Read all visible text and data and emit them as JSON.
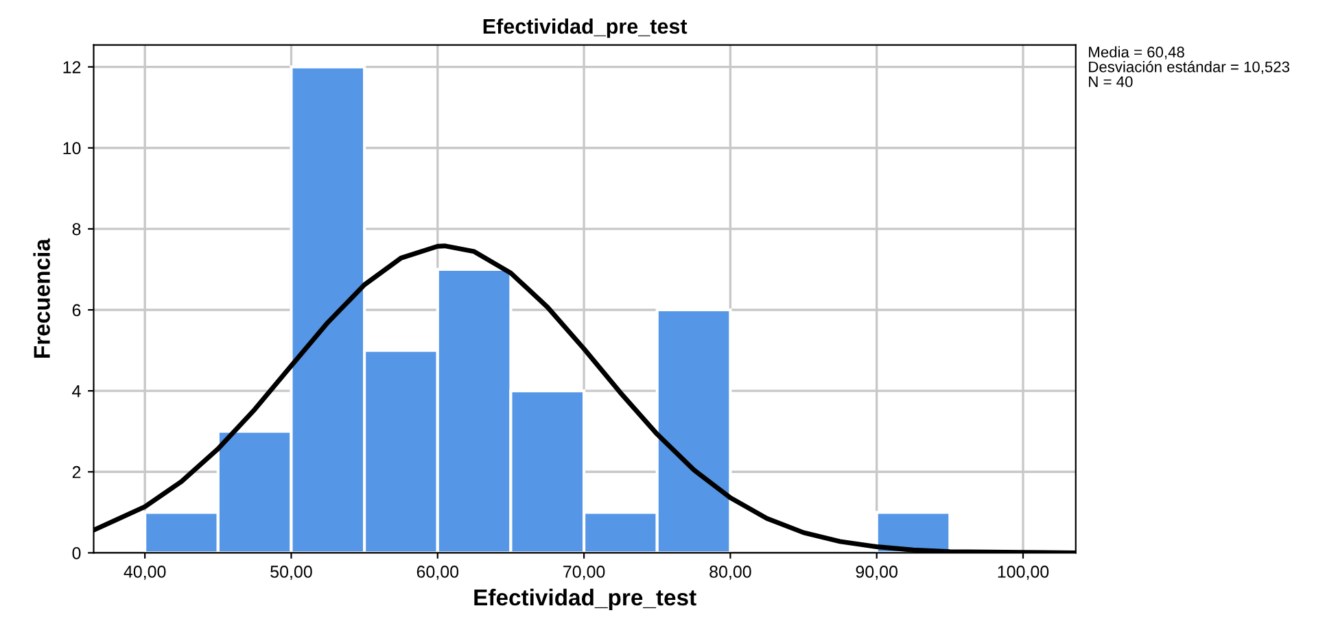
{
  "chart_data": {
    "type": "histogram",
    "title": "Efectividad_pre_test",
    "xlabel": "Efectividad_pre_test",
    "ylabel": "Frecuencia",
    "bins": [
      40,
      45,
      50,
      55,
      60,
      65,
      70,
      75,
      80,
      85,
      90,
      95
    ],
    "values": [
      1,
      3,
      12,
      5,
      7,
      4,
      1,
      6,
      0,
      0,
      1
    ],
    "color": "#5596e6",
    "series": [
      {
        "type": "line",
        "color": "#000000",
        "x": [
          36.5,
          40,
          42.5,
          45,
          47.5,
          50,
          52.5,
          55,
          57.5,
          60,
          60.48,
          62.5,
          65,
          67.5,
          70,
          72.5,
          75,
          77.5,
          80,
          82.5,
          85,
          87.5,
          90,
          92.5,
          95,
          97.5,
          100,
          103.6
        ],
        "values": [
          0.56,
          1.14,
          1.76,
          2.57,
          3.54,
          4.62,
          5.69,
          6.62,
          7.28,
          7.57,
          7.58,
          7.44,
          6.91,
          6.07,
          5.04,
          3.95,
          2.93,
          2.05,
          1.36,
          0.85,
          0.5,
          0.28,
          0.15,
          0.07,
          0.03,
          0.02,
          0.01,
          0.0
        ]
      }
    ],
    "xlim": [
      36.5,
      103.6
    ],
    "xticks": [
      {
        "value": 40,
        "label": "40,00"
      },
      {
        "value": 50,
        "label": "50,00"
      },
      {
        "value": 60,
        "label": "60,00"
      },
      {
        "value": 70,
        "label": "70,00"
      },
      {
        "value": 80,
        "label": "80,00"
      },
      {
        "value": 90,
        "label": "90,00"
      },
      {
        "value": 100,
        "label": "100,00"
      }
    ],
    "ylim": [
      0,
      12.54
    ],
    "yticks": [
      0,
      2,
      4,
      6,
      8,
      10,
      12
    ],
    "grid": true,
    "legend": false,
    "annotations": [
      "Media = 60,48",
      "Desviación estándar = 10,523",
      "N = 40"
    ]
  }
}
